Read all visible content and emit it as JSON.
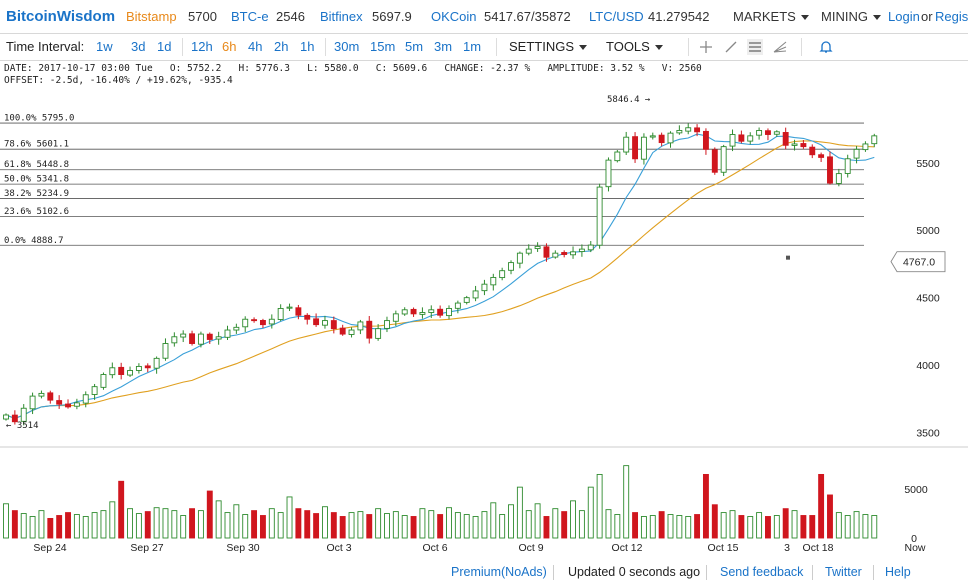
{
  "header": {
    "brand": "BitcoinWisdom",
    "exchanges": [
      {
        "name": "Bitstamp",
        "price": "5700",
        "active": true
      },
      {
        "name": "BTC-e",
        "price": "2546",
        "active": false
      },
      {
        "name": "Bitfinex",
        "price": "5697.9",
        "active": false
      },
      {
        "name": "OKCoin",
        "price": "5417.67/35872",
        "active": false
      },
      {
        "name": "LTC/USD",
        "price": "41.279542",
        "active": false
      }
    ],
    "markets_label": "MARKETS",
    "mining_label": "MINING",
    "login_label": "Login",
    "or_label": "or",
    "register_label": "Regist"
  },
  "toolbar": {
    "time_interval_label": "Time Interval:",
    "intervals": [
      "1w",
      "3d",
      "1d",
      "12h",
      "6h",
      "4h",
      "2h",
      "1h",
      "30m",
      "15m",
      "5m",
      "3m",
      "1m"
    ],
    "active_interval": "6h",
    "settings_label": "SETTINGS",
    "tools_label": "TOOLS",
    "tool_icons": [
      "crosshair-icon",
      "line-tool-icon",
      "horizontal-lines-icon",
      "fan-tool-icon",
      "bell-icon"
    ]
  },
  "info": {
    "line1": "DATE: 2017-10-17 03:00 Tue   O: 5752.2   H: 5776.3   L: 5580.0   C: 5609.6   CHANGE: -2.37 %   AMPLITUDE: 3.52 %   V: 2560",
    "line2": "OFFSET: -2.5d, -16.40% / +19.62%, -935.4"
  },
  "chart_data": {
    "type": "candlestick",
    "price_axis": {
      "ylim": [
        3400,
        6040
      ],
      "ticks": [
        3500,
        4000,
        4500,
        5000,
        5500
      ]
    },
    "volume_axis": {
      "ylim": [
        0,
        9000
      ],
      "ticks": [
        0,
        5000
      ]
    },
    "x_labels": [
      "Sep 24",
      "Sep 27",
      "Sep 30",
      "Oct 3",
      "Oct 6",
      "Oct 9",
      "Oct 12",
      "Oct 15",
      "3",
      "Oct 18",
      "Now"
    ],
    "fib_levels": [
      {
        "label": "100.0%",
        "value": 5795.0
      },
      {
        "label": "78.6%",
        "value": 5601.1
      },
      {
        "label": "61.8%",
        "value": 5448.8
      },
      {
        "label": "50.0%",
        "value": 5341.8
      },
      {
        "label": "38.2%",
        "value": 5234.9
      },
      {
        "label": "23.6%",
        "value": 5102.6
      },
      {
        "label": "0.0%",
        "value": 4888.7
      }
    ],
    "annotations": {
      "high_label": "5846.4 →",
      "low_label": "← 3514",
      "cursor_price": "4767.0"
    },
    "colors": {
      "up": "#2e8b2e",
      "down": "#d0161e",
      "ma_fast": "#3aa0d8",
      "ma_slow": "#e0a020",
      "volume_up": "#2e8b2e",
      "volume_down": "#d0161e"
    },
    "grid": false,
    "closes": [
      3630,
      3580,
      3680,
      3770,
      3790,
      3740,
      3710,
      3690,
      3720,
      3780,
      3840,
      3930,
      3980,
      3930,
      3960,
      3990,
      3980,
      4050,
      4160,
      4210,
      4230,
      4160,
      4230,
      4190,
      4210,
      4260,
      4280,
      4340,
      4330,
      4300,
      4340,
      4420,
      4430,
      4370,
      4340,
      4300,
      4330,
      4270,
      4230,
      4260,
      4320,
      4200,
      4270,
      4330,
      4380,
      4410,
      4380,
      4390,
      4410,
      4370,
      4420,
      4460,
      4500,
      4550,
      4600,
      4650,
      4700,
      4760,
      4830,
      4860,
      4880,
      4800,
      4830,
      4820,
      4840,
      4860,
      4890,
      5320,
      5520,
      5580,
      5690,
      5530,
      5690,
      5700,
      5650,
      5720,
      5740,
      5760,
      5730,
      5600,
      5430,
      5620,
      5710,
      5660,
      5700,
      5740,
      5710,
      5730,
      5630,
      5640,
      5620,
      5560,
      5540,
      5350,
      5420,
      5530,
      5600,
      5640,
      5700
    ],
    "volumes": [
      3500,
      2800,
      2500,
      2200,
      2800,
      2000,
      2300,
      2600,
      2400,
      2200,
      2600,
      2800,
      3700,
      5800,
      3000,
      2500,
      2700,
      3100,
      3000,
      2800,
      2300,
      3000,
      2800,
      4800,
      3800,
      2600,
      3400,
      2400,
      2800,
      2300,
      3000,
      2600,
      4200,
      3000,
      2800,
      2500,
      3200,
      2600,
      2200,
      2600,
      2700,
      2400,
      3000,
      2500,
      2700,
      2300,
      2200,
      3000,
      2800,
      2400,
      3100,
      2600,
      2400,
      2200,
      2700,
      3600,
      2400,
      3400,
      5200,
      2800,
      3500,
      2200,
      3000,
      2700,
      3800,
      2800,
      5200,
      6500,
      2900,
      2400,
      7400,
      2600,
      2200,
      2300,
      2700,
      2400,
      2300,
      2200,
      2400,
      6500,
      3400,
      2600,
      2800,
      2300,
      2200,
      2600,
      2200,
      2300,
      3000,
      2800,
      2300,
      2300,
      6500,
      4400,
      2600,
      2300,
      2700,
      2400,
      2300
    ]
  },
  "footer": {
    "premium_label": "Premium(NoAds)",
    "updated_label": "Updated 0 seconds ago",
    "feedback_label": "Send feedback",
    "twitter_label": "Twitter",
    "help_label": "Help"
  }
}
